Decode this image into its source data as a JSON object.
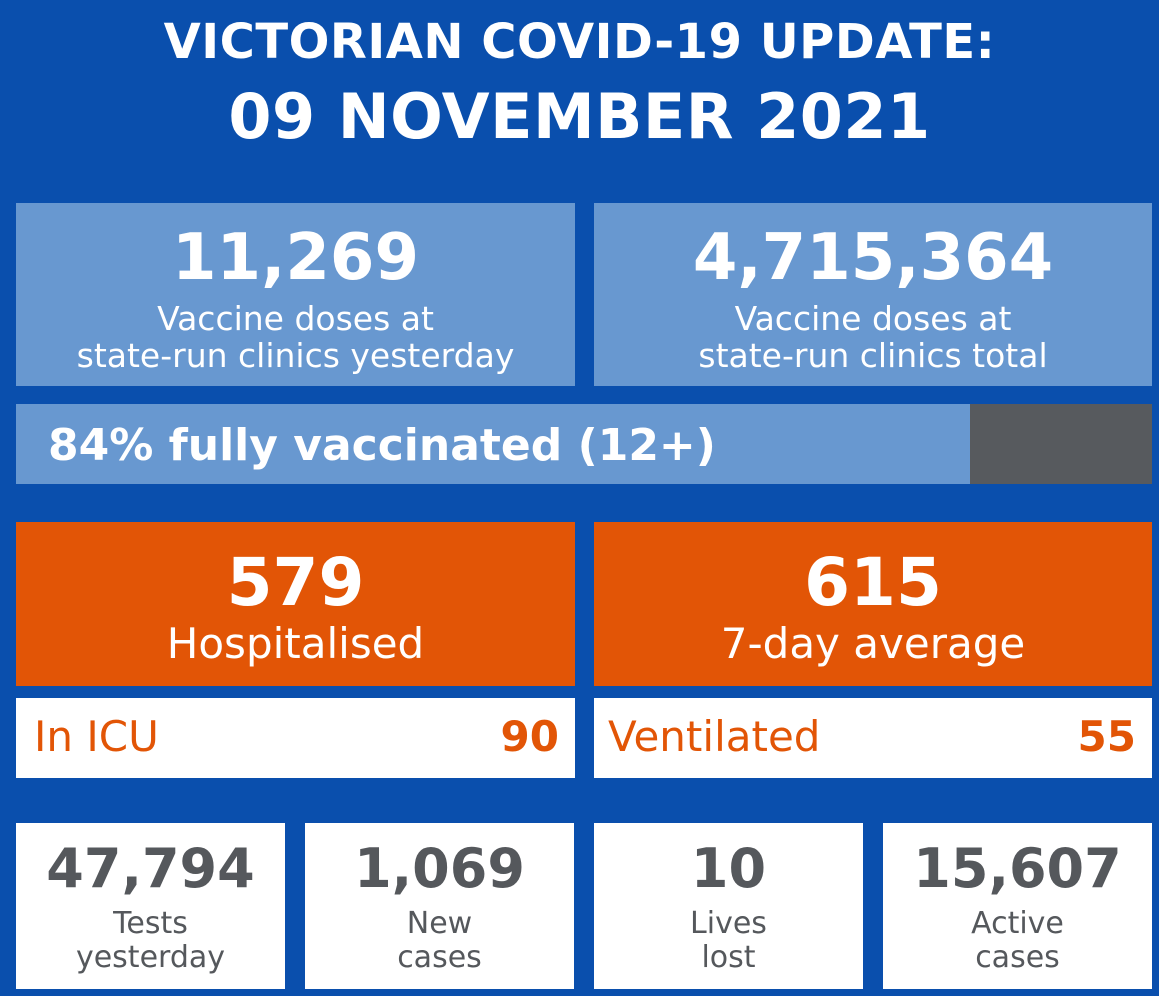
{
  "header": {
    "title_line1": "VICTORIAN COVID-19 UPDATE:",
    "title_line2": "09 NOVEMBER 2021"
  },
  "vaccine": {
    "yesterday": {
      "value": "11,269",
      "label_line1": "Vaccine doses at",
      "label_line2": "state-run clinics yesterday"
    },
    "total": {
      "value": "4,715,364",
      "label_line1": "Vaccine doses at",
      "label_line2": "state-run clinics total"
    }
  },
  "progress": {
    "label": "84% fully vaccinated (12+)",
    "percent": 84,
    "fill_color": "#6898d0",
    "track_color": "#575a5e"
  },
  "hospital": {
    "hospitalised": {
      "value": "579",
      "label": "Hospitalised"
    },
    "seven_day": {
      "value": "615",
      "label": "7-day average"
    },
    "icu": {
      "label": "In ICU",
      "value": "90"
    },
    "ventilated": {
      "label": "Ventilated",
      "value": "55"
    }
  },
  "stats": [
    {
      "value": "47,794",
      "label_line1": "Tests",
      "label_line2": "yesterday"
    },
    {
      "value": "1,069",
      "label_line1": "New",
      "label_line2": "cases"
    },
    {
      "value": "10",
      "label_line1": "Lives",
      "label_line2": "lost"
    },
    {
      "value": "15,607",
      "label_line1": "Active",
      "label_line2": "cases"
    }
  ],
  "colors": {
    "background": "#0a4fad",
    "light_panel": "#6898d0",
    "orange": "#e25506",
    "gray_text": "#55585c"
  }
}
